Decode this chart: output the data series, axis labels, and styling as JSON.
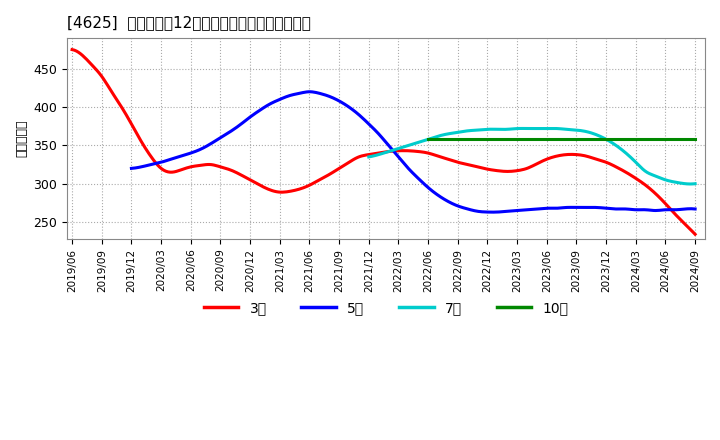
{
  "title": "[4625]  当期約利益12か月移動合計の平均値の推移",
  "ylabel": "（百万円）",
  "background_color": "#ffffff",
  "plot_background": "#ffffff",
  "grid_color": "#aaaaaa",
  "ylim": [
    228,
    490
  ],
  "yticks": [
    250,
    300,
    350,
    400,
    450
  ],
  "series": {
    "3year": {
      "color": "#ff0000",
      "label": "3年",
      "x": [
        0,
        1,
        2,
        3,
        4,
        5,
        6,
        7,
        8,
        9,
        10,
        11,
        12,
        13,
        14,
        15,
        16,
        17,
        18,
        19,
        20,
        21,
        22,
        23,
        24,
        25,
        26,
        27,
        28,
        29,
        30,
        31,
        32,
        33,
        34,
        35,
        36,
        37,
        38,
        39,
        40,
        41,
        42,
        43,
        44,
        45,
        46,
        47,
        48,
        49,
        50,
        51,
        52,
        53,
        54,
        55,
        56,
        57,
        58,
        59,
        60,
        61,
        62,
        63
      ],
      "y": [
        475,
        468,
        455,
        440,
        420,
        400,
        378,
        355,
        335,
        320,
        315,
        318,
        322,
        324,
        325,
        322,
        318,
        312,
        305,
        298,
        292,
        289,
        290,
        293,
        298,
        305,
        312,
        320,
        328,
        335,
        338,
        340,
        342,
        343,
        343,
        342,
        340,
        336,
        332,
        328,
        325,
        322,
        319,
        317,
        316,
        317,
        320,
        326,
        332,
        336,
        338,
        338,
        336,
        332,
        328,
        322,
        315,
        307,
        298,
        287,
        274,
        260,
        247,
        234
      ]
    },
    "5year": {
      "color": "#0000ff",
      "label": "5年",
      "x": [
        6,
        7,
        8,
        9,
        10,
        11,
        12,
        13,
        14,
        15,
        16,
        17,
        18,
        19,
        20,
        21,
        22,
        23,
        24,
        25,
        26,
        27,
        28,
        29,
        30,
        31,
        32,
        33,
        34,
        35,
        36,
        37,
        38,
        39,
        40,
        41,
        42,
        43,
        44,
        45,
        46,
        47,
        48,
        49,
        50,
        51,
        52,
        53,
        54,
        55,
        56,
        57,
        58,
        59,
        60,
        61,
        62,
        63
      ],
      "y": [
        320,
        322,
        325,
        328,
        332,
        336,
        340,
        345,
        352,
        360,
        368,
        377,
        387,
        396,
        404,
        410,
        415,
        418,
        420,
        418,
        414,
        408,
        400,
        390,
        378,
        365,
        350,
        335,
        320,
        307,
        295,
        285,
        277,
        271,
        267,
        264,
        263,
        263,
        264,
        265,
        266,
        267,
        268,
        268,
        269,
        269,
        269,
        269,
        268,
        267,
        267,
        266,
        266,
        265,
        266,
        266,
        267,
        267
      ]
    },
    "7year": {
      "color": "#00cccc",
      "label": "7年",
      "x": [
        30,
        31,
        32,
        33,
        34,
        35,
        36,
        37,
        38,
        39,
        40,
        41,
        42,
        43,
        44,
        45,
        46,
        47,
        48,
        49,
        50,
        51,
        52,
        53,
        54,
        55,
        56,
        57,
        58,
        59,
        60,
        61,
        62,
        63
      ],
      "y": [
        335,
        338,
        342,
        346,
        350,
        354,
        358,
        362,
        365,
        367,
        369,
        370,
        371,
        371,
        371,
        372,
        372,
        372,
        372,
        372,
        371,
        370,
        368,
        364,
        358,
        350,
        340,
        328,
        316,
        310,
        305,
        302,
        300,
        300
      ]
    },
    "10year": {
      "color": "#008800",
      "label": "10年",
      "x": [
        36,
        37,
        38,
        39,
        40,
        41,
        42,
        43,
        44,
        45,
        46,
        47,
        48,
        49,
        50,
        51,
        52,
        53,
        54,
        55,
        56,
        57,
        58,
        59,
        60,
        61,
        62,
        63
      ],
      "y": [
        358,
        358,
        358,
        358,
        358,
        358,
        358,
        358,
        358,
        358,
        358,
        358,
        358,
        358,
        358,
        358,
        358,
        358,
        358,
        358,
        358,
        358,
        358,
        358,
        358,
        358,
        358,
        358
      ]
    }
  },
  "x_labels": [
    "2019/06",
    "2019/09",
    "2019/12",
    "2020/03",
    "2020/06",
    "2020/09",
    "2020/12",
    "2021/03",
    "2021/06",
    "2021/09",
    "2021/12",
    "2022/03",
    "2022/06",
    "2022/09",
    "2022/12",
    "2023/03",
    "2023/06",
    "2023/09",
    "2023/12",
    "2024/03",
    "2024/06",
    "2024/09"
  ],
  "legend_labels": [
    "3年",
    "5年",
    "7年",
    "10年"
  ],
  "legend_colors": [
    "#ff0000",
    "#0000ff",
    "#00cccc",
    "#008800"
  ]
}
